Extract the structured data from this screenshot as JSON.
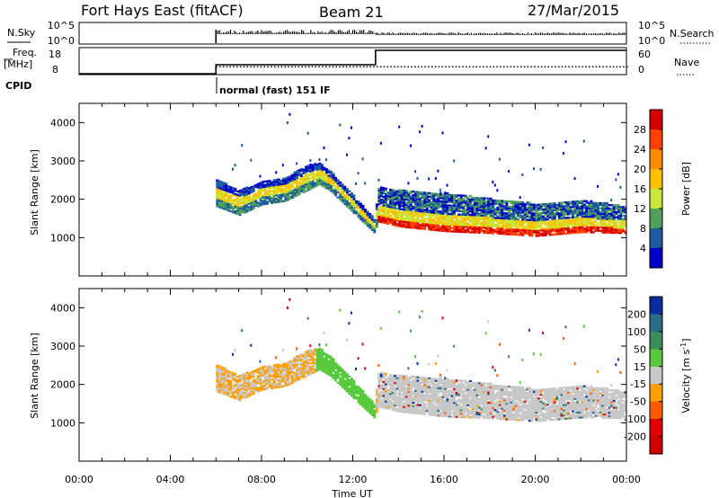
{
  "header": {
    "radar": "Fort Hays East (fitACF)",
    "beam": "Beam 21",
    "date": "27/Mar/2015"
  },
  "params": {
    "nsky_label": "N.Sky",
    "nsky_ticks": [
      "10^5",
      "10^0"
    ],
    "nsearch_label": "N.Search",
    "nsearch_ticks": [
      "10^5",
      "10^0"
    ],
    "freq_label": "Freq.",
    "freq_unit": "[MHz]",
    "freq_ticks": [
      "18",
      "8"
    ],
    "nave_label": "Nave",
    "nave_ticks": [
      "60",
      "0"
    ],
    "cpid_label": "CPID",
    "cpid_mode": "normal (fast) 151 IF"
  },
  "colorbars": {
    "power": {
      "label": "Power [dB]",
      "ticks": [
        "28",
        "24",
        "20",
        "16",
        "12",
        "8",
        "4"
      ],
      "colors": [
        "#d40000",
        "#ff4000",
        "#ff8c00",
        "#ffc000",
        "#c8e63c",
        "#4fa05a",
        "#1e5aa0",
        "#0000c8"
      ]
    },
    "velocity": {
      "label": "Velocity [m s",
      "label_sup": "-1",
      "label_tail": "]",
      "ticks": [
        "200",
        "100",
        "50",
        "15",
        "-15",
        "-50",
        "-100",
        "-200"
      ],
      "colors": [
        "#0a2c9c",
        "#2a6c8a",
        "#3a8c5a",
        "#58c83c",
        "#c8c8c8",
        "#ffa000",
        "#ff5a00",
        "#e00000",
        "#d00000"
      ]
    }
  },
  "axes": {
    "ylabel": "Slant Range [km]",
    "xlabel": "Time UT",
    "x_ticks": [
      "00:00",
      "04:00",
      "08:00",
      "12:00",
      "16:00",
      "20:00",
      "00:00"
    ],
    "y_ticks": [
      "1000",
      "2000",
      "3000",
      "4000"
    ]
  },
  "chart_data": {
    "type": "heatmap",
    "title": "Fort Hays East (fitACF)   Beam 21   27/Mar/2015",
    "xlabel": "Time UT",
    "x_unit": "hours UT",
    "xlim": [
      0,
      24
    ],
    "ylabel": "Slant Range [km]",
    "ylim": [
      0,
      4500
    ],
    "data_start_hour": 6,
    "mode_change_hour": 13,
    "series": [
      {
        "name": "Power",
        "unit": "dB",
        "clim": [
          0,
          30
        ],
        "echo_band": {
          "x": [
            6,
            7,
            8,
            9,
            10,
            10.5,
            11,
            12,
            12.9,
            13.1,
            14,
            16,
            18,
            20,
            22,
            24
          ],
          "center_km": [
            2150,
            1900,
            2150,
            2250,
            2550,
            2650,
            2450,
            1850,
            1300,
            1850,
            1750,
            1650,
            1550,
            1450,
            1550,
            1450
          ],
          "width_km": [
            700,
            650,
            600,
            620,
            650,
            550,
            500,
            450,
            350,
            900,
            950,
            1000,
            900,
            850,
            850,
            700
          ]
        }
      },
      {
        "name": "Velocity",
        "unit": "m s^-1",
        "clim": [
          -200,
          200
        ]
      }
    ]
  }
}
